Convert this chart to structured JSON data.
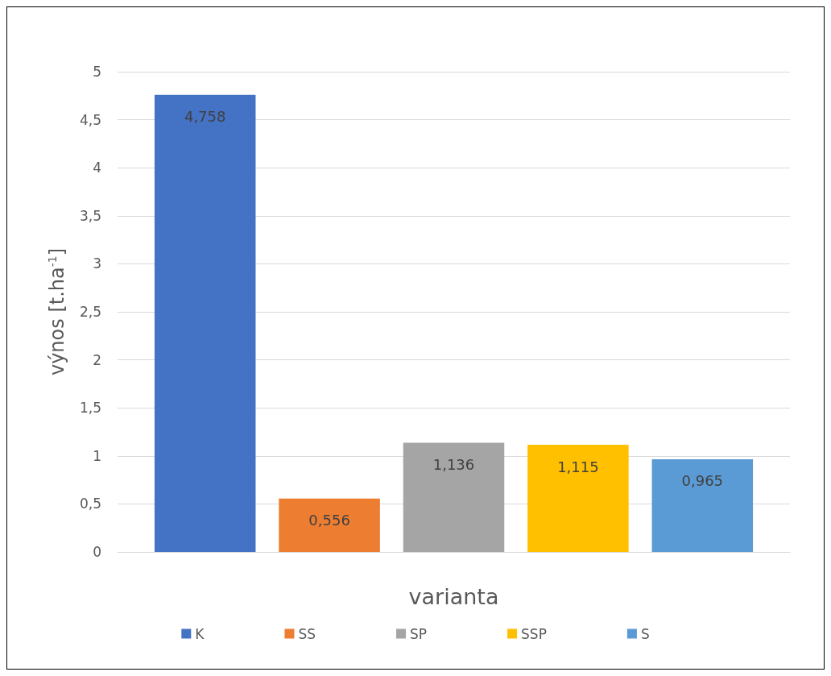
{
  "chart_data": {
    "type": "bar",
    "xlabel": "varianta",
    "ylabel": "výnos [t.ha$^{-1}$]",
    "categories": [
      null
    ],
    "series": [
      {
        "name": "K",
        "color": "#4472c4",
        "values": [
          4.758
        ],
        "value_labels": [
          "4,758"
        ]
      },
      {
        "name": "SS",
        "color": "#ed7d31",
        "values": [
          0.556
        ],
        "value_labels": [
          "0,556"
        ]
      },
      {
        "name": "SP",
        "color": "#a5a5a5",
        "values": [
          1.136
        ],
        "value_labels": [
          "1,136"
        ]
      },
      {
        "name": "SSP",
        "color": "#ffc000",
        "values": [
          1.115
        ],
        "value_labels": [
          "1,115"
        ]
      },
      {
        "name": "S",
        "color": "#5b9bd5",
        "values": [
          0.965
        ],
        "value_labels": [
          "0,965"
        ]
      }
    ],
    "ylim": [
      0,
      5
    ],
    "yticks": [
      0,
      {
        "value": 0.5,
        "label": "0,5"
      },
      1,
      {
        "value": 1.5,
        "label": "1,5"
      },
      2,
      {
        "value": 2.5,
        "label": "2,5"
      },
      3,
      {
        "value": 3.5,
        "label": "3,5"
      },
      4,
      {
        "value": 4.5,
        "label": "4,5"
      },
      5
    ],
    "grid": "y",
    "legend": "bottom"
  }
}
